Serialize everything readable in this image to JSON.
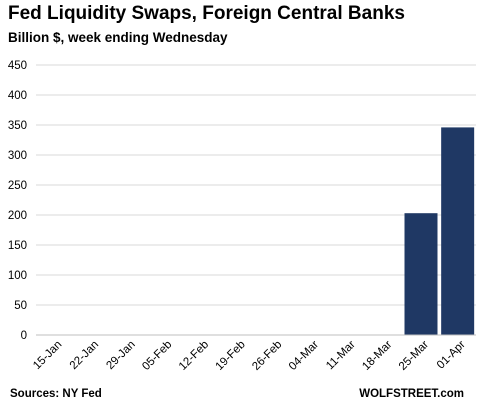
{
  "chart_data": {
    "type": "bar",
    "title": "Fed Liquidity  Swaps, Foreign Central Banks",
    "subtitle": "Billion $, week ending Wednesday",
    "xlabel": "",
    "ylabel": "",
    "categories": [
      "15-Jan",
      "22-Jan",
      "29-Jan",
      "05-Feb",
      "12-Feb",
      "19-Feb",
      "26-Feb",
      "04-Mar",
      "11-Mar",
      "18-Mar",
      "25-Mar",
      "01-Apr"
    ],
    "values": [
      0,
      0,
      0,
      0,
      0,
      0,
      0,
      0,
      0,
      0,
      203,
      346
    ],
    "ylim": [
      0,
      450
    ],
    "yticks": [
      0,
      50,
      100,
      150,
      200,
      250,
      300,
      350,
      400,
      450
    ],
    "grid": "horizontal",
    "bar_color": "#1f3864",
    "grid_color": "#d9d9d9",
    "source": "Sources: NY Fed",
    "brand": "WOLFSTREET.com"
  }
}
